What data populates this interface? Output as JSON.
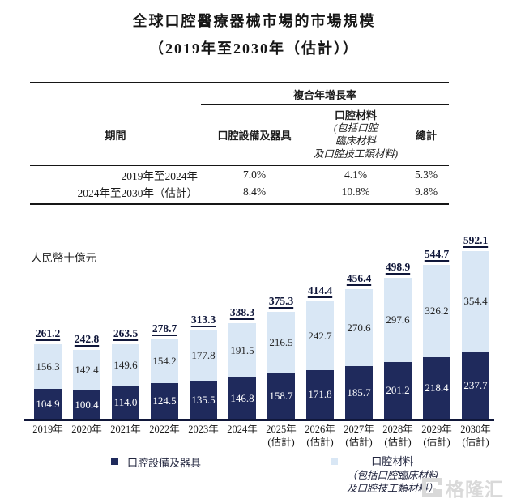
{
  "page": {
    "title": "全球口腔醫療器械市場的市場規模",
    "subtitle": "（2019年至2030年（估計））"
  },
  "table": {
    "group_header": "複合年增長率",
    "col_period": "期間",
    "col_equipment": "口腔設備及器具",
    "col_materials": "口腔材料",
    "col_materials_note_lines": [
      "(包括口腔",
      "臨床材料",
      "及口腔技工類材料)"
    ],
    "col_total": "總計",
    "rows": [
      {
        "period": "2019年至2024年",
        "equipment": "7.0%",
        "materials": "4.1%",
        "total": "5.3%"
      },
      {
        "period": "2024年至2030年（估計）",
        "equipment": "8.4%",
        "materials": "10.8%",
        "total": "9.8%"
      }
    ]
  },
  "chart": {
    "unit_label": "人民幣十億元"
  },
  "chart_data": {
    "type": "bar",
    "stacked": true,
    "title": "全球口腔醫療器械市場的市場規模（2019年至2030年（估計））",
    "ylabel": "人民幣十億元",
    "grid": false,
    "legend_position": "bottom",
    "categories": [
      "2019年",
      "2020年",
      "2021年",
      "2022年",
      "2023年",
      "2024年",
      "2025年",
      "2026年",
      "2027年",
      "2028年",
      "2029年",
      "2030年"
    ],
    "category_sublabels": [
      "",
      "",
      "",
      "",
      "",
      "",
      "(估計)",
      "(估計)",
      "(估計)",
      "(估計)",
      "(估計)",
      "(估計)"
    ],
    "series": [
      {
        "name": "口腔設備及器具",
        "color": "#1F2A5C",
        "values": [
          104.9,
          100.4,
          114.0,
          124.5,
          135.5,
          146.8,
          158.7,
          171.8,
          185.7,
          201.2,
          218.4,
          237.7
        ]
      },
      {
        "name": "口腔材料（包括口腔臨床材料及口腔技工類材料）",
        "color": "#D9E7F5",
        "values": [
          156.3,
          142.4,
          149.6,
          154.2,
          177.8,
          191.5,
          216.5,
          242.7,
          270.6,
          297.6,
          326.2,
          354.4
        ]
      }
    ],
    "totals": [
      261.2,
      242.8,
      263.5,
      278.7,
      313.3,
      338.3,
      375.3,
      414.4,
      456.4,
      498.9,
      544.7,
      592.1
    ],
    "ylim": [
      0,
      650
    ]
  },
  "legend": {
    "equipment": {
      "label": "口腔設備及器具",
      "color": "#1F2A5C"
    },
    "materials": {
      "label": "口腔材料",
      "note_lines": [
        "（包括口腔臨床材料",
        "及口腔技工類材料）"
      ],
      "color": "#D9E7F5"
    }
  },
  "watermark": {
    "text": "格隆汇"
  }
}
